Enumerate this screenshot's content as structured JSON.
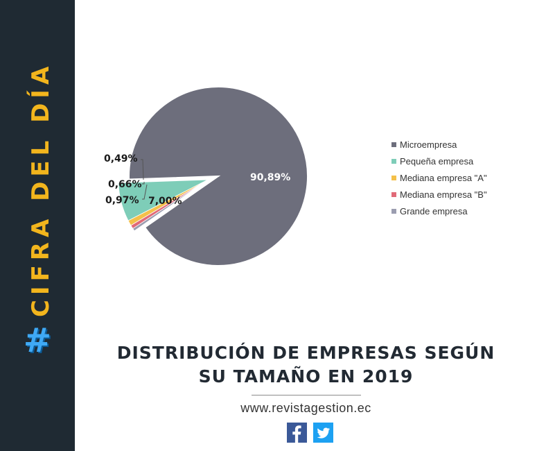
{
  "sidebar": {
    "hashtag": "#",
    "text": "CIFRA DEL DÍA"
  },
  "chart_data": {
    "type": "pie",
    "title": "",
    "categories": [
      "Microempresa",
      "Pequeña empresa",
      "Mediana empresa \"A\"",
      "Mediana empresa \"B\"",
      "Grande empresa"
    ],
    "values": [
      90.89,
      7.0,
      0.97,
      0.66,
      0.49
    ],
    "labels": [
      "90,89%",
      "7,00%",
      "0,97%",
      "0,66%",
      "0,49%"
    ],
    "colors": [
      "#6d6e7c",
      "#7ecdb8",
      "#f4c04a",
      "#e16a78",
      "#9b9db0"
    ],
    "legend_position": "right",
    "exploded": [
      "Pequeña empresa",
      "Mediana empresa \"A\"",
      "Mediana empresa \"B\"",
      "Grande empresa"
    ]
  },
  "caption": {
    "line1": "DISTRIBUCIÓN DE EMPRESAS SEGÚN",
    "line2": "SU TAMAÑO EN 2019"
  },
  "footer": {
    "website": "www.revistagestion.ec",
    "social": [
      "facebook-icon",
      "twitter-icon"
    ]
  }
}
